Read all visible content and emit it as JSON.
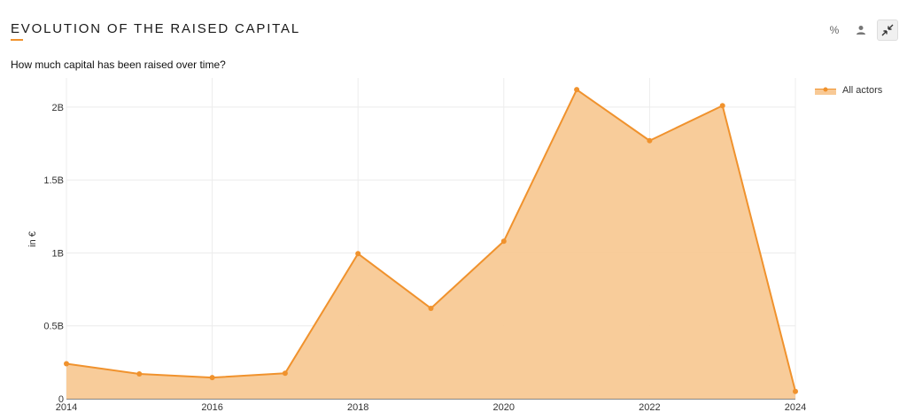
{
  "header": {
    "title": "EVOLUTION OF THE RAISED CAPITAL",
    "subtitle": "How much capital has been raised over time?"
  },
  "toolbar": {
    "percent_label": "%",
    "user_icon": "user-icon",
    "collapse_icon": "collapse-arrows-icon"
  },
  "colors": {
    "accent": "#f0922d",
    "fill": "#f8c995",
    "grid": "#ececec"
  },
  "chart_data": {
    "type": "area",
    "title": "",
    "xlabel": "",
    "ylabel": "in €",
    "x": [
      2014,
      2015,
      2016,
      2017,
      2018,
      2019,
      2020,
      2021,
      2022,
      2023,
      2024
    ],
    "series": [
      {
        "name": "All actors",
        "values": [
          0.24,
          0.17,
          0.145,
          0.175,
          0.995,
          0.62,
          1.08,
          2.12,
          1.77,
          2.01,
          0.05
        ]
      }
    ],
    "xlim": [
      2014,
      2024
    ],
    "ylim": [
      0,
      2.2
    ],
    "x_ticks": [
      2014,
      2016,
      2018,
      2020,
      2022,
      2024
    ],
    "x_tick_labels": [
      "2014",
      "2016",
      "2018",
      "2020",
      "2022",
      "2024"
    ],
    "y_ticks": [
      0,
      0.5,
      1,
      1.5,
      2
    ],
    "y_tick_labels": [
      "0",
      "0.5B",
      "1B",
      "1.5B",
      "2B"
    ],
    "grid": true,
    "legend_position": "top-right"
  }
}
